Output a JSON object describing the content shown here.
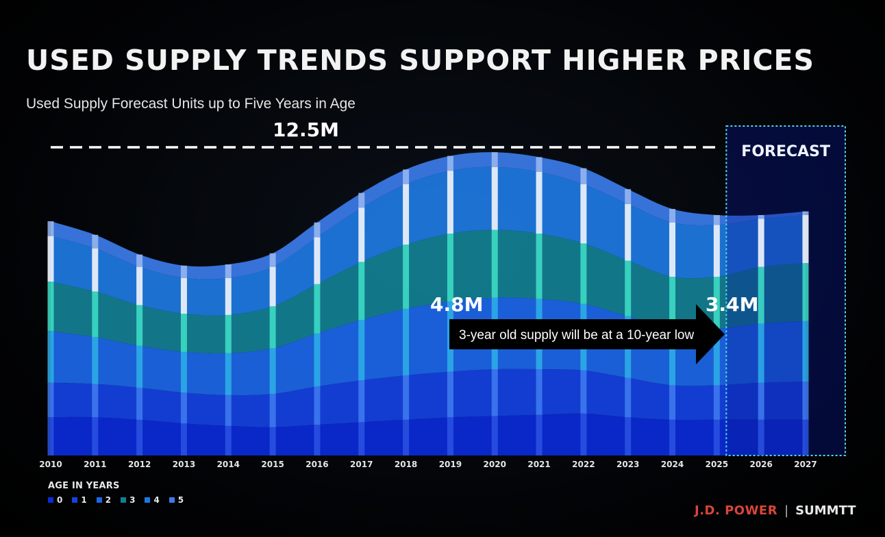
{
  "title": "USED SUPPLY TRENDS SUPPORT HIGHER PRICES",
  "subtitle": "Used Supply Forecast Units up to Five Years in Age",
  "chart_data": {
    "type": "area",
    "stacked": true,
    "categories": [
      "2010",
      "2011",
      "2012",
      "2013",
      "2014",
      "2015",
      "2016",
      "2017",
      "2018",
      "2019",
      "2020",
      "2021",
      "2022",
      "2023",
      "2024",
      "2025",
      "2026",
      "2027"
    ],
    "series": [
      {
        "name": "0",
        "color": "#0b2bd6",
        "values": [
          1.55,
          1.55,
          1.45,
          1.3,
          1.2,
          1.15,
          1.25,
          1.35,
          1.45,
          1.55,
          1.6,
          1.65,
          1.7,
          1.55,
          1.45,
          1.45,
          1.45,
          1.45
        ]
      },
      {
        "name": "1",
        "color": "#1442e0",
        "values": [
          1.4,
          1.35,
          1.3,
          1.25,
          1.25,
          1.35,
          1.55,
          1.7,
          1.8,
          1.85,
          1.9,
          1.85,
          1.75,
          1.6,
          1.4,
          1.4,
          1.5,
          1.55
        ]
      },
      {
        "name": "2",
        "color": "#1c66e6",
        "values": [
          2.1,
          1.9,
          1.7,
          1.65,
          1.7,
          1.85,
          2.15,
          2.45,
          2.7,
          2.85,
          2.9,
          2.85,
          2.7,
          2.5,
          2.35,
          2.3,
          2.4,
          2.45
        ]
      },
      {
        "name": "3",
        "color": "#137f92",
        "values": [
          2.0,
          1.85,
          1.65,
          1.55,
          1.55,
          1.7,
          2.0,
          2.35,
          2.6,
          2.75,
          2.75,
          2.65,
          2.45,
          2.25,
          2.05,
          2.1,
          2.3,
          2.35
        ]
      },
      {
        "name": "4",
        "color": "#1e78e0",
        "values": [
          1.85,
          1.75,
          1.55,
          1.45,
          1.5,
          1.6,
          1.9,
          2.2,
          2.45,
          2.55,
          2.55,
          2.5,
          2.4,
          2.3,
          2.2,
          2.1,
          1.95,
          1.95
        ]
      },
      {
        "name": "5",
        "color": "#3b7be8",
        "values": [
          0.6,
          0.55,
          0.5,
          0.5,
          0.55,
          0.55,
          0.6,
          0.6,
          0.6,
          0.6,
          0.6,
          0.6,
          0.65,
          0.6,
          0.55,
          0.4,
          0.15,
          0.15
        ]
      }
    ],
    "ylim": [
      0,
      14
    ],
    "grid": false,
    "legend_position": "bottom-left",
    "legend_title": "AGE IN YEARS",
    "forecast_label": "FORECAST",
    "forecast_start": "2025",
    "forecast_end": "2027",
    "reference_line": {
      "value": 12.5,
      "label": "12.5M"
    },
    "annotations": {
      "start_label": "4.8M",
      "end_label": "3.4M",
      "arrow_text": "3-year old supply will be at a 10-year low"
    }
  },
  "brand": {
    "company": "J.D. POWER",
    "separator": "|",
    "event": "SUMMTT"
  }
}
